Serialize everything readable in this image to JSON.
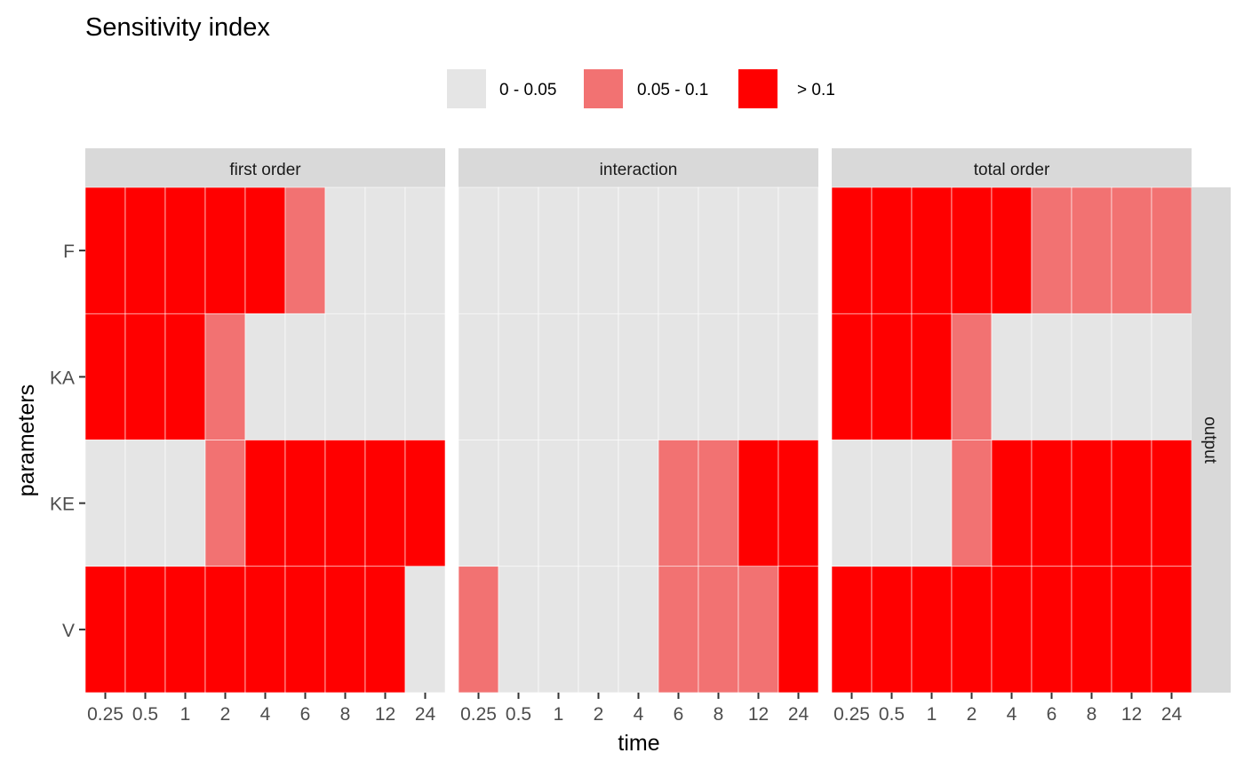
{
  "chart_data": {
    "type": "heatmap",
    "title": "Sensitivity index",
    "xlabel": "time",
    "ylabel": "parameters",
    "facet_strip_right": "output",
    "x": [
      "0.25",
      "0.5",
      "1",
      "2",
      "4",
      "6",
      "8",
      "12",
      "24"
    ],
    "y": [
      "F",
      "KA",
      "KE",
      "V"
    ],
    "legend": {
      "placement": "top",
      "entries": [
        {
          "label": "0 - 0.05",
          "color": "#e5e5e5"
        },
        {
          "label": "0.05 - 0.1",
          "color": "#f27272"
        },
        {
          "label": "> 0.1",
          "color": "#ff0000"
        }
      ]
    },
    "panels": [
      {
        "name": "first order",
        "cells": {
          "F": [
            2,
            2,
            2,
            2,
            2,
            1,
            0,
            0,
            0
          ],
          "KA": [
            2,
            2,
            2,
            1,
            0,
            0,
            0,
            0,
            0
          ],
          "KE": [
            0,
            0,
            0,
            1,
            2,
            2,
            2,
            2,
            2
          ],
          "V": [
            2,
            2,
            2,
            2,
            2,
            2,
            2,
            2,
            0
          ]
        }
      },
      {
        "name": "interaction",
        "cells": {
          "F": [
            0,
            0,
            0,
            0,
            0,
            0,
            0,
            0,
            0
          ],
          "KA": [
            0,
            0,
            0,
            0,
            0,
            0,
            0,
            0,
            0
          ],
          "KE": [
            0,
            0,
            0,
            0,
            0,
            1,
            1,
            2,
            2
          ],
          "V": [
            1,
            0,
            0,
            0,
            0,
            1,
            1,
            1,
            2
          ]
        }
      },
      {
        "name": "total order",
        "cells": {
          "F": [
            2,
            2,
            2,
            2,
            2,
            1,
            1,
            1,
            1
          ],
          "KA": [
            2,
            2,
            2,
            1,
            0,
            0,
            0,
            0,
            0
          ],
          "KE": [
            0,
            0,
            0,
            1,
            2,
            2,
            2,
            2,
            2
          ],
          "V": [
            2,
            2,
            2,
            2,
            2,
            2,
            2,
            2,
            2
          ]
        }
      }
    ]
  }
}
